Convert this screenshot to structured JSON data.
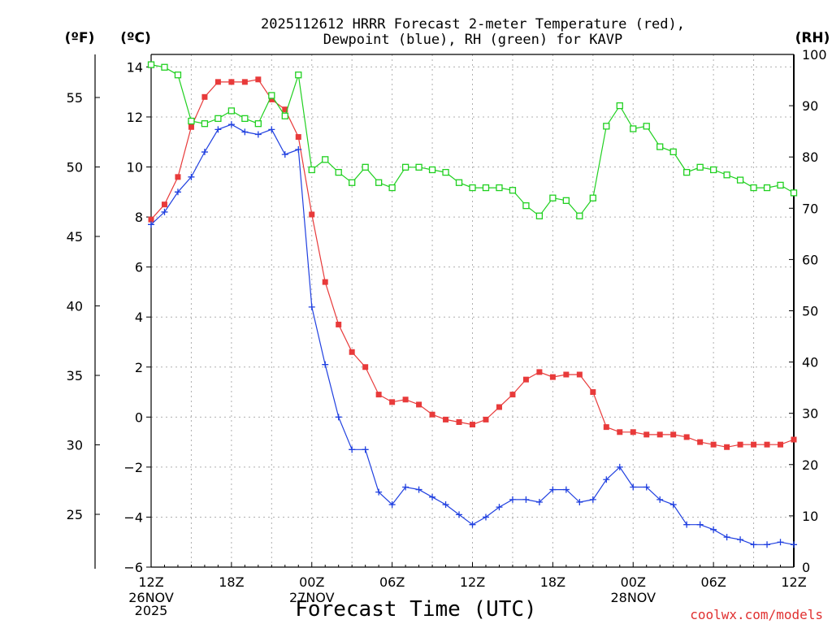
{
  "title_line1": "2025112612 HRRR Forecast 2-meter Temperature (red),",
  "title_line2": "Dewpoint (blue), RH (green) for KAVP",
  "units": {
    "f": "(ºF)",
    "c": "(ºC)",
    "rh": "(RH)"
  },
  "xlabel": "Forecast Time (UTC)",
  "credit": "coolwx.com/models",
  "chart_data": {
    "type": "line",
    "x_start": "2025-11-26 12Z",
    "x_interval_hours": 1,
    "x_ticks": [
      {
        "hour": 0,
        "label": "12Z",
        "sub": [
          "26NOV",
          "2025"
        ]
      },
      {
        "hour": 6,
        "label": "18Z",
        "sub": []
      },
      {
        "hour": 12,
        "label": "00Z",
        "sub": [
          "27NOV"
        ]
      },
      {
        "hour": 18,
        "label": "06Z",
        "sub": []
      },
      {
        "hour": 24,
        "label": "12Z",
        "sub": []
      },
      {
        "hour": 30,
        "label": "18Z",
        "sub": []
      },
      {
        "hour": 36,
        "label": "00Z",
        "sub": [
          "28NOV"
        ]
      },
      {
        "hour": 42,
        "label": "06Z",
        "sub": []
      },
      {
        "hour": 48,
        "label": "12Z",
        "sub": []
      }
    ],
    "y_left_c": {
      "label": "(ºC)",
      "range": [
        -6,
        14.5
      ],
      "ticks": [
        -6,
        -4,
        -2,
        0,
        2,
        4,
        6,
        8,
        10,
        12,
        14
      ]
    },
    "y_left_f": {
      "label": "(ºF)",
      "range": [
        21.2,
        58.1
      ],
      "ticks": [
        25,
        30,
        35,
        40,
        45,
        50,
        55
      ]
    },
    "y_right_rh": {
      "label": "(RH)",
      "range": [
        0,
        100
      ],
      "ticks": [
        0,
        10,
        20,
        30,
        40,
        50,
        60,
        70,
        80,
        90,
        100
      ]
    },
    "grid": true,
    "series": [
      {
        "name": "Temperature",
        "axis": "C",
        "color": "#e83a3a",
        "marker": "filled-square",
        "values": [
          7.9,
          8.5,
          9.6,
          11.6,
          12.8,
          13.4,
          13.4,
          13.4,
          13.5,
          12.7,
          12.3,
          11.2,
          8.1,
          5.4,
          3.7,
          2.6,
          2.0,
          0.9,
          0.6,
          0.7,
          0.5,
          0.1,
          -0.1,
          -0.2,
          -0.3,
          -0.1,
          0.4,
          0.9,
          1.5,
          1.8,
          1.6,
          1.7,
          1.7,
          1.0,
          -0.4,
          -0.6,
          -0.6,
          -0.7,
          -0.7,
          -0.7,
          -0.8,
          -1.0,
          -1.1,
          -1.2,
          -1.1,
          -1.1,
          -1.1,
          -1.1,
          -0.9
        ]
      },
      {
        "name": "Dewpoint",
        "axis": "C",
        "color": "#2040e0",
        "marker": "plus",
        "values": [
          7.7,
          8.2,
          9.0,
          9.6,
          10.6,
          11.5,
          11.7,
          11.4,
          11.3,
          11.5,
          10.5,
          10.7,
          4.4,
          2.1,
          0.0,
          -1.3,
          -1.3,
          -3.0,
          -3.5,
          -2.8,
          -2.9,
          -3.2,
          -3.5,
          -3.9,
          -4.3,
          -4.0,
          -3.6,
          -3.3,
          -3.3,
          -3.4,
          -2.9,
          -2.9,
          -3.4,
          -3.3,
          -2.5,
          -2.0,
          -2.8,
          -2.8,
          -3.3,
          -3.5,
          -4.3,
          -4.3,
          -4.5,
          -4.8,
          -4.9,
          -5.1,
          -5.1,
          -5.0,
          -5.1
        ]
      },
      {
        "name": "RH",
        "axis": "RH",
        "color": "#20d020",
        "marker": "open-square",
        "values": [
          98,
          97.5,
          96,
          87,
          86.5,
          87.5,
          89,
          87.5,
          86.5,
          92,
          88,
          96,
          77.5,
          79.5,
          77,
          75,
          78,
          75,
          74,
          78,
          78,
          77.5,
          77,
          75,
          74,
          74,
          74,
          73.5,
          70.5,
          68.5,
          72,
          71.5,
          68.5,
          72,
          86,
          90,
          85.5,
          86,
          82,
          81,
          77,
          78,
          77.5,
          76.5,
          75.5,
          74,
          74,
          74.5,
          73
        ]
      }
    ]
  }
}
